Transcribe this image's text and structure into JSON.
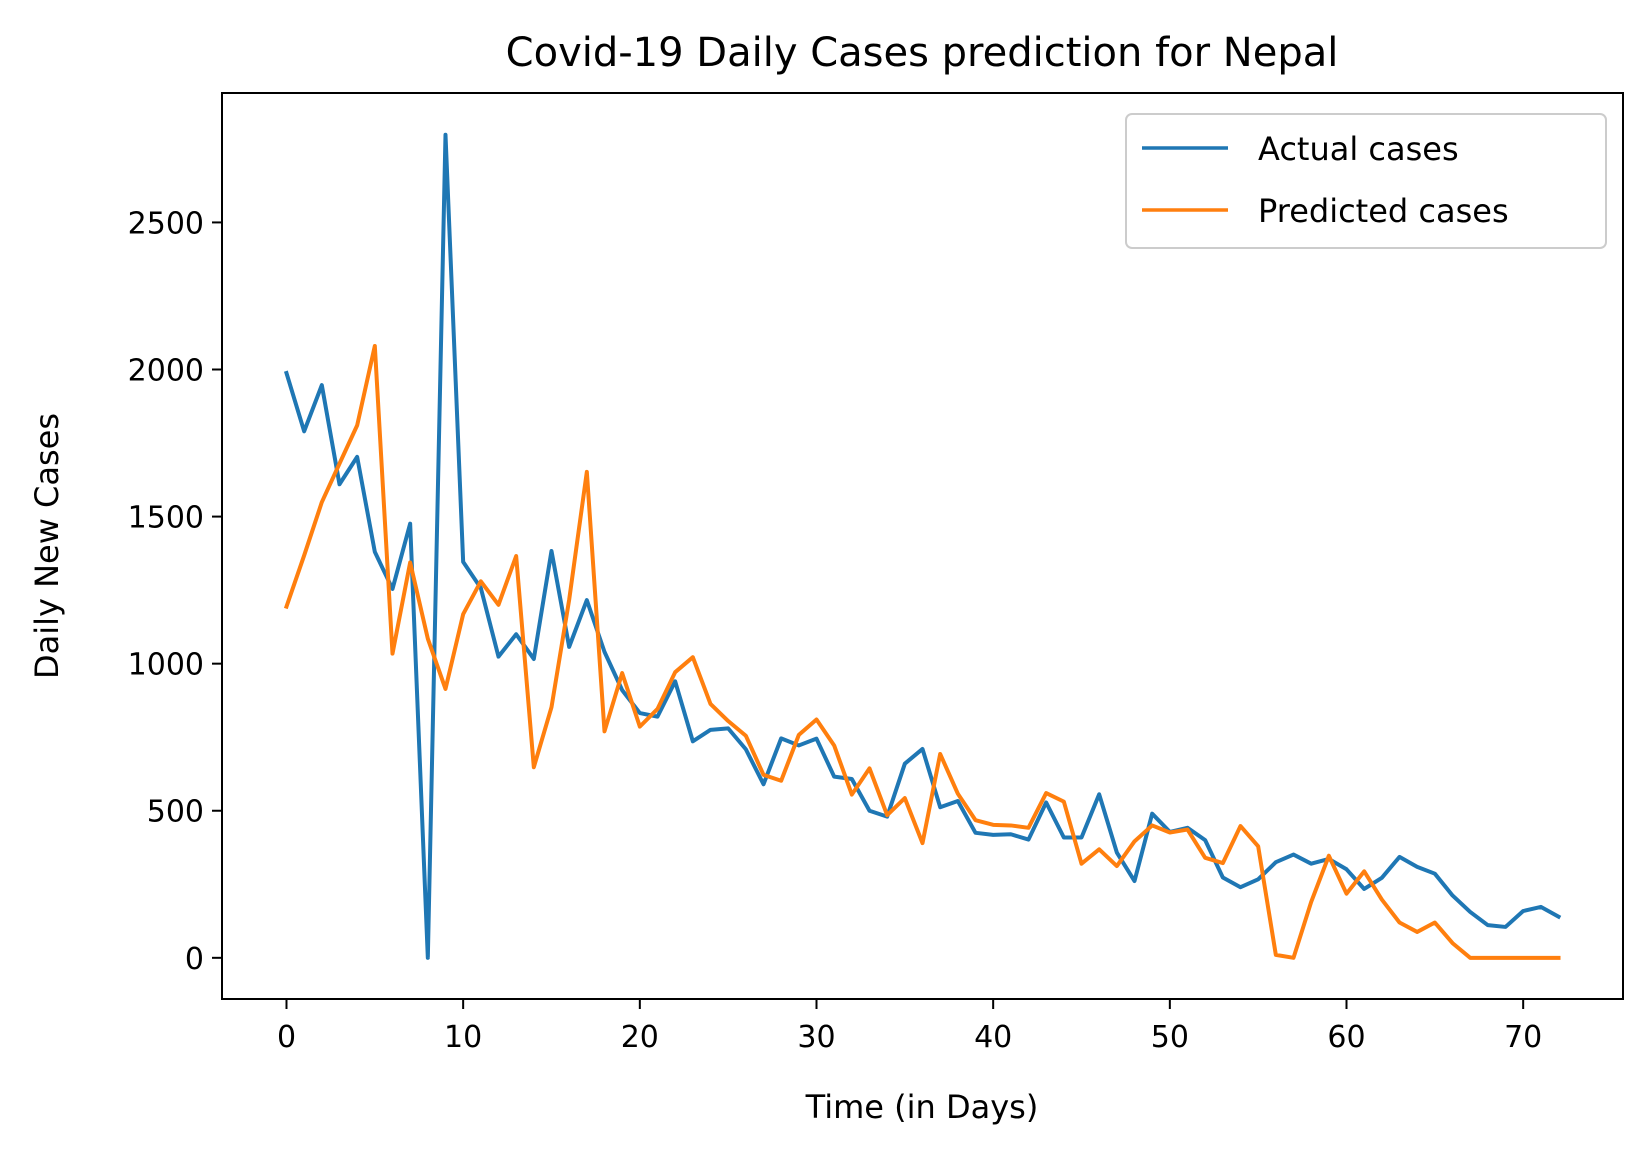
{
  "chart_data": {
    "type": "line",
    "title": "Covid-19 Daily Cases prediction for Nepal",
    "xlabel": "Time (in Days)",
    "ylabel": "Daily New Cases",
    "xlim": [
      -3.65,
      75.65
    ],
    "ylim": [
      -140,
      2940
    ],
    "xticks": [
      0,
      10,
      20,
      30,
      40,
      50,
      60,
      70
    ],
    "yticks": [
      0,
      500,
      1000,
      1500,
      2000,
      2500
    ],
    "xtick_labels": [
      "0",
      "10",
      "20",
      "30",
      "40",
      "50",
      "60",
      "70"
    ],
    "ytick_labels": [
      "0",
      "500",
      "1000",
      "1500",
      "2000",
      "2500"
    ],
    "grid": false,
    "legend_position": "top-right",
    "series": [
      {
        "name": "Actual cases",
        "color": "#1f77b4",
        "values": [
          1988,
          1790,
          1947,
          1610,
          1703,
          1380,
          1254,
          1476,
          0,
          2798,
          1346,
          1257,
          1024,
          1100,
          1016,
          1383,
          1057,
          1216,
          1040,
          910,
          832,
          820,
          940,
          736,
          775,
          780,
          709,
          590,
          746,
          722,
          745,
          616,
          608,
          500,
          480,
          660,
          710,
          512,
          533,
          425,
          418,
          420,
          402,
          528,
          409,
          409,
          556,
          358,
          261,
          490,
          428,
          442,
          400,
          273,
          240,
          267,
          325,
          351,
          320,
          336,
          301,
          234,
          272,
          343,
          309,
          286,
          212,
          156,
          111,
          105,
          159,
          173,
          140
        ]
      },
      {
        "name": "Predicted cases",
        "color": "#ff7f0e",
        "values": [
          1194,
          1368,
          1549,
          1680,
          1810,
          2080,
          1034,
          1344,
          1085,
          914,
          1168,
          1280,
          1200,
          1366,
          648,
          852,
          1217,
          1652,
          770,
          968,
          786,
          846,
          971,
          1022,
          863,
          805,
          755,
          622,
          602,
          758,
          810,
          722,
          555,
          644,
          485,
          543,
          390,
          693,
          558,
          468,
          452,
          450,
          442,
          560,
          531,
          320,
          369,
          312,
          396,
          450,
          426,
          436,
          340,
          322,
          448,
          379,
          10,
          0,
          190,
          347,
          218,
          294,
          198,
          120,
          88,
          120,
          50,
          0,
          0,
          0,
          0,
          0,
          0
        ]
      }
    ]
  }
}
